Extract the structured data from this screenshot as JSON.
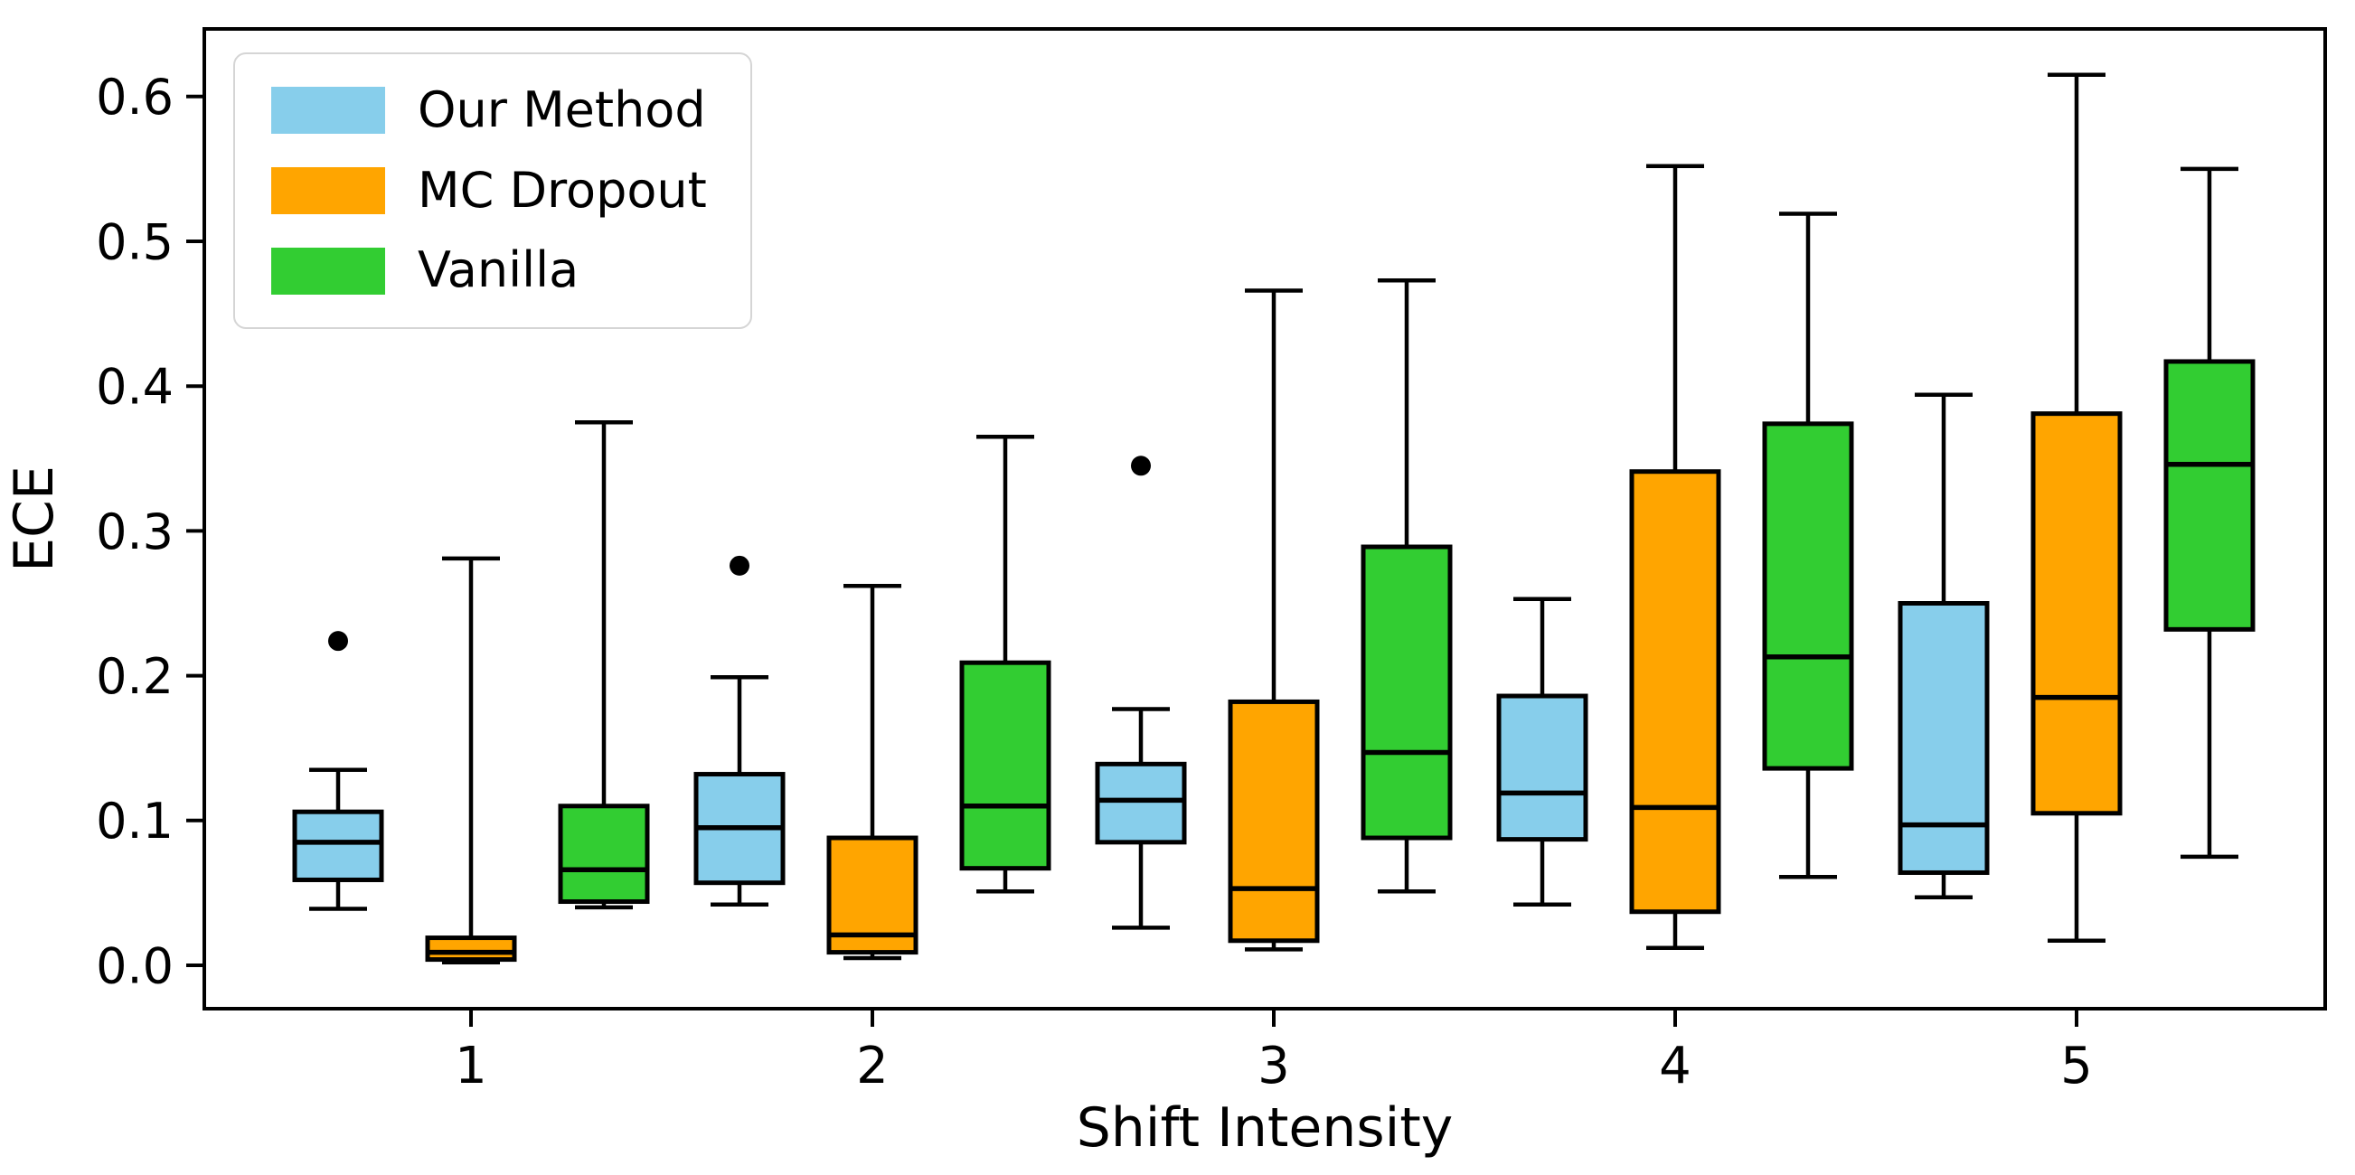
{
  "figure": {
    "background": "#ffffff",
    "axis_color": "#000000",
    "text_color": "#000000"
  },
  "legend": {
    "position": "upper-left",
    "items": [
      {
        "label": "Our Method",
        "color": "#87CEEB"
      },
      {
        "label": "MC Dropout",
        "color": "#FFA500"
      },
      {
        "label": "Vanilla",
        "color": "#32CD32"
      }
    ]
  },
  "chart_data": {
    "type": "boxplot",
    "title": "",
    "xlabel": "Shift Intensity",
    "ylabel": "ECE",
    "x_categories": [
      "1",
      "2",
      "3",
      "4",
      "5"
    ],
    "y_tick_labels": [
      "0.0",
      "0.1",
      "0.2",
      "0.3",
      "0.4",
      "0.5",
      "0.6"
    ],
    "y_tick_values": [
      0.0,
      0.1,
      0.2,
      0.3,
      0.4,
      0.5,
      0.6
    ],
    "ylim": [
      -0.03,
      0.647
    ],
    "grid": false,
    "legend_position": "upper left",
    "series": [
      {
        "name": "Our Method",
        "color": "#87CEEB",
        "offset": -0.33,
        "boxes": [
          {
            "x": 1,
            "whislo": 0.039,
            "q1": 0.059,
            "med": 0.085,
            "q3": 0.106,
            "whishi": 0.135,
            "fliers": [
              0.224
            ]
          },
          {
            "x": 2,
            "whislo": 0.042,
            "q1": 0.057,
            "med": 0.095,
            "q3": 0.132,
            "whishi": 0.199,
            "fliers": [
              0.276
            ]
          },
          {
            "x": 3,
            "whislo": 0.026,
            "q1": 0.085,
            "med": 0.114,
            "q3": 0.139,
            "whishi": 0.177,
            "fliers": [
              0.345
            ]
          },
          {
            "x": 4,
            "whislo": 0.042,
            "q1": 0.087,
            "med": 0.119,
            "q3": 0.186,
            "whishi": 0.253,
            "fliers": []
          },
          {
            "x": 5,
            "whislo": 0.047,
            "q1": 0.064,
            "med": 0.097,
            "q3": 0.25,
            "whishi": 0.394,
            "fliers": []
          }
        ]
      },
      {
        "name": "MC Dropout",
        "color": "#FFA500",
        "offset": 0,
        "boxes": [
          {
            "x": 1,
            "whislo": 0.002,
            "q1": 0.004,
            "med": 0.009,
            "q3": 0.019,
            "whishi": 0.281,
            "fliers": []
          },
          {
            "x": 2,
            "whislo": 0.005,
            "q1": 0.009,
            "med": 0.021,
            "q3": 0.088,
            "whishi": 0.262,
            "fliers": []
          },
          {
            "x": 3,
            "whislo": 0.011,
            "q1": 0.017,
            "med": 0.053,
            "q3": 0.182,
            "whishi": 0.466,
            "fliers": []
          },
          {
            "x": 4,
            "whislo": 0.012,
            "q1": 0.037,
            "med": 0.109,
            "q3": 0.341,
            "whishi": 0.552,
            "fliers": []
          },
          {
            "x": 5,
            "whislo": 0.017,
            "q1": 0.105,
            "med": 0.185,
            "q3": 0.381,
            "whishi": 0.615,
            "fliers": []
          }
        ]
      },
      {
        "name": "Vanilla",
        "color": "#32CD32",
        "offset": 0.33,
        "boxes": [
          {
            "x": 1,
            "whislo": 0.04,
            "q1": 0.044,
            "med": 0.066,
            "q3": 0.11,
            "whishi": 0.375,
            "fliers": []
          },
          {
            "x": 2,
            "whislo": 0.051,
            "q1": 0.067,
            "med": 0.11,
            "q3": 0.209,
            "whishi": 0.365,
            "fliers": []
          },
          {
            "x": 3,
            "whislo": 0.051,
            "q1": 0.088,
            "med": 0.147,
            "q3": 0.289,
            "whishi": 0.473,
            "fliers": []
          },
          {
            "x": 4,
            "whislo": 0.061,
            "q1": 0.136,
            "med": 0.213,
            "q3": 0.374,
            "whishi": 0.519,
            "fliers": []
          },
          {
            "x": 5,
            "whislo": 0.075,
            "q1": 0.232,
            "med": 0.346,
            "q3": 0.417,
            "whishi": 0.55,
            "fliers": []
          }
        ]
      }
    ]
  }
}
